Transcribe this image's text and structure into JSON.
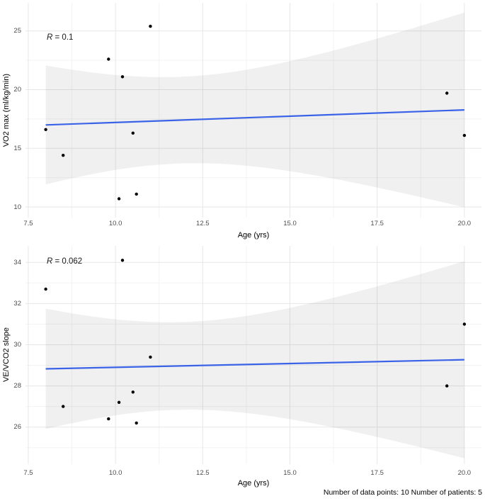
{
  "figure": {
    "footer": "Number of data points: 10 Number of patients: 5",
    "background": "#ffffff"
  },
  "style": {
    "trend_line_color": "#3B63E8",
    "ci_band_fill": "rgba(0,0,0,0.06)",
    "grid_major_color": "#e7e7e7",
    "grid_minor_color": "#f3f3f3",
    "point_color": "#000000",
    "tick_label_color": "#4d4d4d",
    "axis_title_color": "#000000"
  },
  "chart_data": [
    {
      "type": "scatter",
      "title": "",
      "xlabel": "Age (yrs)",
      "ylabel": "VO2 max (ml/kg/min)",
      "stat": {
        "symbol": "R",
        "rest": " = 0.1",
        "full": "R = 0.1"
      },
      "x": [
        8.0,
        8.5,
        9.8,
        10.1,
        10.2,
        10.5,
        10.6,
        11.0,
        19.5,
        20.0
      ],
      "y": [
        16.6,
        14.4,
        22.6,
        10.7,
        21.1,
        16.3,
        11.1,
        25.4,
        19.7,
        16.1
      ],
      "xlim": [
        7.42,
        20.49
      ],
      "ylim": [
        9.1,
        27.4
      ],
      "xticks": [
        7.5,
        10.0,
        12.5,
        15.0,
        17.5,
        20.0
      ],
      "xtick_labels": [
        "7.5",
        "10.0",
        "12.5",
        "15.0",
        "17.5",
        "20.0"
      ],
      "yticks": [
        10,
        15,
        20,
        25
      ],
      "ytick_labels": [
        "10",
        "15",
        "20",
        "25"
      ],
      "trend": "linear_regression_with_95ci_band",
      "grid": true,
      "legend": "none"
    },
    {
      "type": "scatter",
      "title": "",
      "xlabel": "Age (yrs)",
      "ylabel": "VE/VCO2 slope",
      "stat": {
        "symbol": "R",
        "rest": " = 0.062",
        "full": "R = 0.062"
      },
      "x": [
        8.0,
        8.5,
        9.8,
        10.1,
        10.2,
        10.5,
        10.6,
        11.0,
        19.5,
        20.0
      ],
      "y": [
        32.7,
        27.0,
        26.4,
        27.2,
        34.1,
        27.7,
        26.2,
        29.4,
        28.0,
        31.0
      ],
      "xlim": [
        7.42,
        20.49
      ],
      "ylim": [
        24.2,
        34.8
      ],
      "xticks": [
        7.5,
        10.0,
        12.5,
        15.0,
        17.5,
        20.0
      ],
      "xtick_labels": [
        "7.5",
        "10.0",
        "12.5",
        "15.0",
        "17.5",
        "20.0"
      ],
      "yticks": [
        26,
        28,
        30,
        32,
        34
      ],
      "ytick_labels": [
        "26",
        "28",
        "30",
        "32",
        "34"
      ],
      "trend": "linear_regression_with_95ci_band",
      "grid": true,
      "legend": "none"
    }
  ]
}
